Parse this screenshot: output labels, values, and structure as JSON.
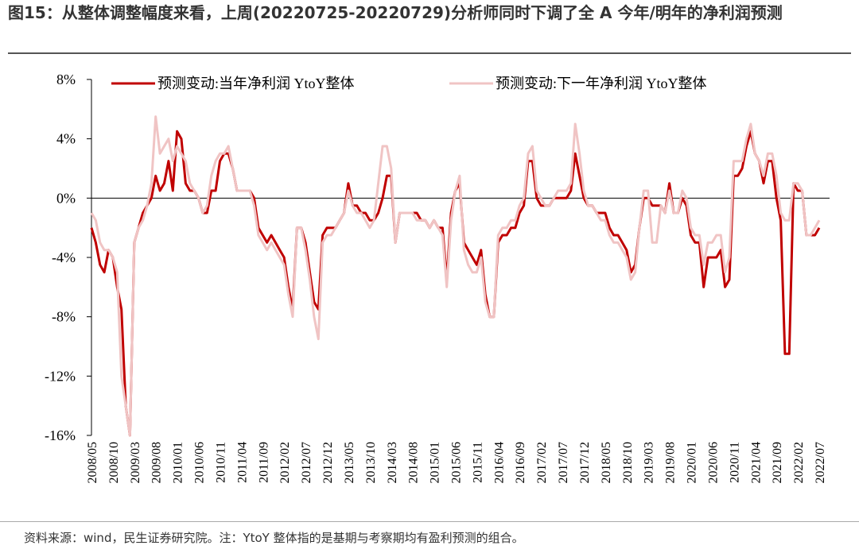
{
  "chart_data": {
    "type": "line",
    "title": "图15：从整体调整幅度来看，上周(20220725-20220729)分析师同时下调了全 A 今年/明年的净利润预测",
    "source": "资料来源：wind，民生证券研究院。注：YtoY 整体指的是基期与考察期均有盈利预测的组合。",
    "x": [
      "2008/05",
      null,
      null,
      null,
      null,
      "2008/10",
      null,
      null,
      null,
      null,
      "2009/03",
      null,
      null,
      null,
      null,
      "2009/08",
      null,
      null,
      null,
      null,
      "2010/01",
      null,
      null,
      null,
      null,
      "2010/06",
      null,
      null,
      null,
      null,
      "2010/11",
      null,
      null,
      null,
      null,
      "2011/04",
      null,
      null,
      null,
      null,
      "2011/09",
      null,
      null,
      null,
      null,
      "2012/02",
      null,
      null,
      null,
      null,
      "2012/07",
      null,
      null,
      null,
      null,
      "2012/12",
      null,
      null,
      null,
      null,
      "2013/05",
      null,
      null,
      null,
      null,
      "2013/10",
      null,
      null,
      null,
      null,
      "2014/03",
      null,
      null,
      null,
      null,
      "2014/08",
      null,
      null,
      null,
      null,
      "2015/01",
      null,
      null,
      null,
      null,
      "2015/06",
      null,
      null,
      null,
      null,
      "2015/11",
      null,
      null,
      null,
      null,
      "2016/04",
      null,
      null,
      null,
      null,
      "2016/09",
      null,
      null,
      null,
      null,
      "2017/02",
      null,
      null,
      null,
      null,
      "2017/07",
      null,
      null,
      null,
      null,
      "2017/12",
      null,
      null,
      null,
      null,
      "2018/05",
      null,
      null,
      null,
      null,
      "2018/10",
      null,
      null,
      null,
      null,
      "2019/03",
      null,
      null,
      null,
      null,
      "2019/08",
      null,
      null,
      null,
      null,
      "2020/01",
      null,
      null,
      null,
      null,
      "2020/06",
      null,
      null,
      null,
      null,
      "2020/11",
      null,
      null,
      null,
      null,
      "2021/04",
      null,
      null,
      null,
      null,
      "2021/09",
      null,
      null,
      null,
      null,
      "2022/02",
      null,
      null,
      null,
      null,
      "2022/07"
    ],
    "series": [
      {
        "name": "预测变动:当年净利润 YtoY整体",
        "color": "#c00000",
        "width": 3,
        "values": [
          -2,
          -3,
          -4.5,
          -5,
          -3.5,
          -4,
          -6,
          -7.5,
          -14,
          -16,
          -3,
          -2,
          -1,
          -0.5,
          0,
          1.5,
          0.5,
          1,
          2.5,
          0.5,
          4.5,
          4,
          1,
          0.5,
          0.5,
          0,
          -1,
          -1,
          0.5,
          0.5,
          2.5,
          3,
          3,
          2,
          0.5,
          0.5,
          0.5,
          0.5,
          0,
          -2,
          -2.5,
          -3,
          -2.5,
          -3,
          -3.5,
          -4,
          -6,
          -7.5,
          -2,
          -2,
          -3,
          -5,
          -7,
          -7.5,
          -2.5,
          -2,
          -2,
          -2,
          -1.5,
          -1,
          1,
          -0.5,
          -0.5,
          -1,
          -1,
          -1.5,
          -1.5,
          -1,
          0,
          1.5,
          1.5,
          -3,
          -1,
          -1,
          -1,
          -1,
          -1,
          -1.5,
          -1.5,
          -2,
          -1.5,
          -2,
          -2,
          -5.5,
          -1,
          0.5,
          1,
          -3,
          -3.5,
          -4,
          -4.5,
          -3.5,
          -6.5,
          -8,
          -8,
          -3,
          -2.5,
          -2.5,
          -2,
          -2,
          -1,
          -0.5,
          2.5,
          2.5,
          0,
          -0.5,
          -0.5,
          -0.5,
          0,
          0,
          0,
          0,
          0.5,
          3,
          1.5,
          0,
          -0.5,
          -0.5,
          -1,
          -1,
          -1,
          -2,
          -2.5,
          -2.5,
          -3,
          -3.5,
          -5,
          -4.5,
          -2,
          0,
          0,
          -0.5,
          -0.5,
          -0.5,
          -1,
          1,
          -1,
          -1,
          0,
          -0.5,
          -2.5,
          -3,
          -3,
          -6,
          -4,
          -4,
          -4,
          -3.5,
          -6,
          -5.5,
          1.5,
          1.5,
          2,
          3.5,
          4.5,
          3,
          2.5,
          1,
          2.5,
          2.5,
          0,
          -1.5,
          -10.5,
          -10.5,
          1,
          0.5,
          0.5,
          -2.5,
          -2.5,
          -2.5,
          -2
        ]
      },
      {
        "name": "预测变动:下一年净利润 YtoY整体",
        "color": "#f0c4c4",
        "width": 3,
        "values": [
          -1,
          -1.5,
          -3,
          -3.5,
          -3.5,
          -4,
          -5,
          -12,
          -14,
          -16,
          -3,
          -2,
          -1.5,
          -0.5,
          1,
          5.5,
          3,
          3.5,
          4,
          2.5,
          3.5,
          3,
          2.5,
          1,
          0.5,
          0,
          -1,
          -0.5,
          1.5,
          2.5,
          3,
          3,
          3.5,
          2,
          0.5,
          0.5,
          0.5,
          0.5,
          -0.5,
          -2.5,
          -3,
          -3.5,
          -3,
          -3.5,
          -4,
          -4.5,
          -6.5,
          -8,
          -2,
          -2,
          -3.5,
          -5.5,
          -8,
          -9.5,
          -3,
          -2.5,
          -2.5,
          -2,
          -1.5,
          -1,
          0.5,
          -0.5,
          -1,
          -1,
          -1.5,
          -2,
          -1.5,
          1,
          3.5,
          3.5,
          2,
          -3,
          -1,
          -1,
          -1,
          -1,
          -1.5,
          -1.5,
          -1.5,
          -2,
          -1.5,
          -2,
          -2.5,
          -6,
          -1.5,
          0.5,
          1.5,
          -3.5,
          -4.5,
          -5,
          -5,
          -4,
          -7,
          -8,
          -8,
          -2.5,
          -2,
          -2,
          -1.5,
          -1.5,
          -0.5,
          0,
          3,
          3.5,
          0.5,
          0,
          -0.5,
          -0.5,
          0,
          0.5,
          0.5,
          0.5,
          1,
          5,
          3,
          0.5,
          -0.5,
          -0.5,
          -1,
          -1.5,
          -1.5,
          -2.5,
          -3,
          -3,
          -3.5,
          -4,
          -5.5,
          -5,
          -2,
          0.5,
          0.5,
          -3,
          -3,
          -0.5,
          -1,
          0.5,
          -1,
          -1,
          0.5,
          0,
          -2,
          -2.5,
          -2.5,
          -4.5,
          -3,
          -3,
          -2.5,
          -2.5,
          -5,
          -4,
          2.5,
          2.5,
          2.5,
          4,
          5,
          3,
          2.5,
          1.5,
          3,
          3,
          1.5,
          -1,
          -1.5,
          -1.5,
          1,
          1,
          0.5,
          -2.5,
          -2.5,
          -2,
          -1.5
        ]
      }
    ],
    "ylim": [
      -16,
      8
    ],
    "yticks": [
      {
        "value": -16,
        "label": "-16%"
      },
      {
        "value": -12,
        "label": "-12%"
      },
      {
        "value": -8,
        "label": "-8%"
      },
      {
        "value": -4,
        "label": "-4%"
      },
      {
        "value": 0,
        "label": "0%"
      },
      {
        "value": 4,
        "label": "4%"
      },
      {
        "value": 8,
        "label": "8%"
      }
    ],
    "legend": "top"
  }
}
